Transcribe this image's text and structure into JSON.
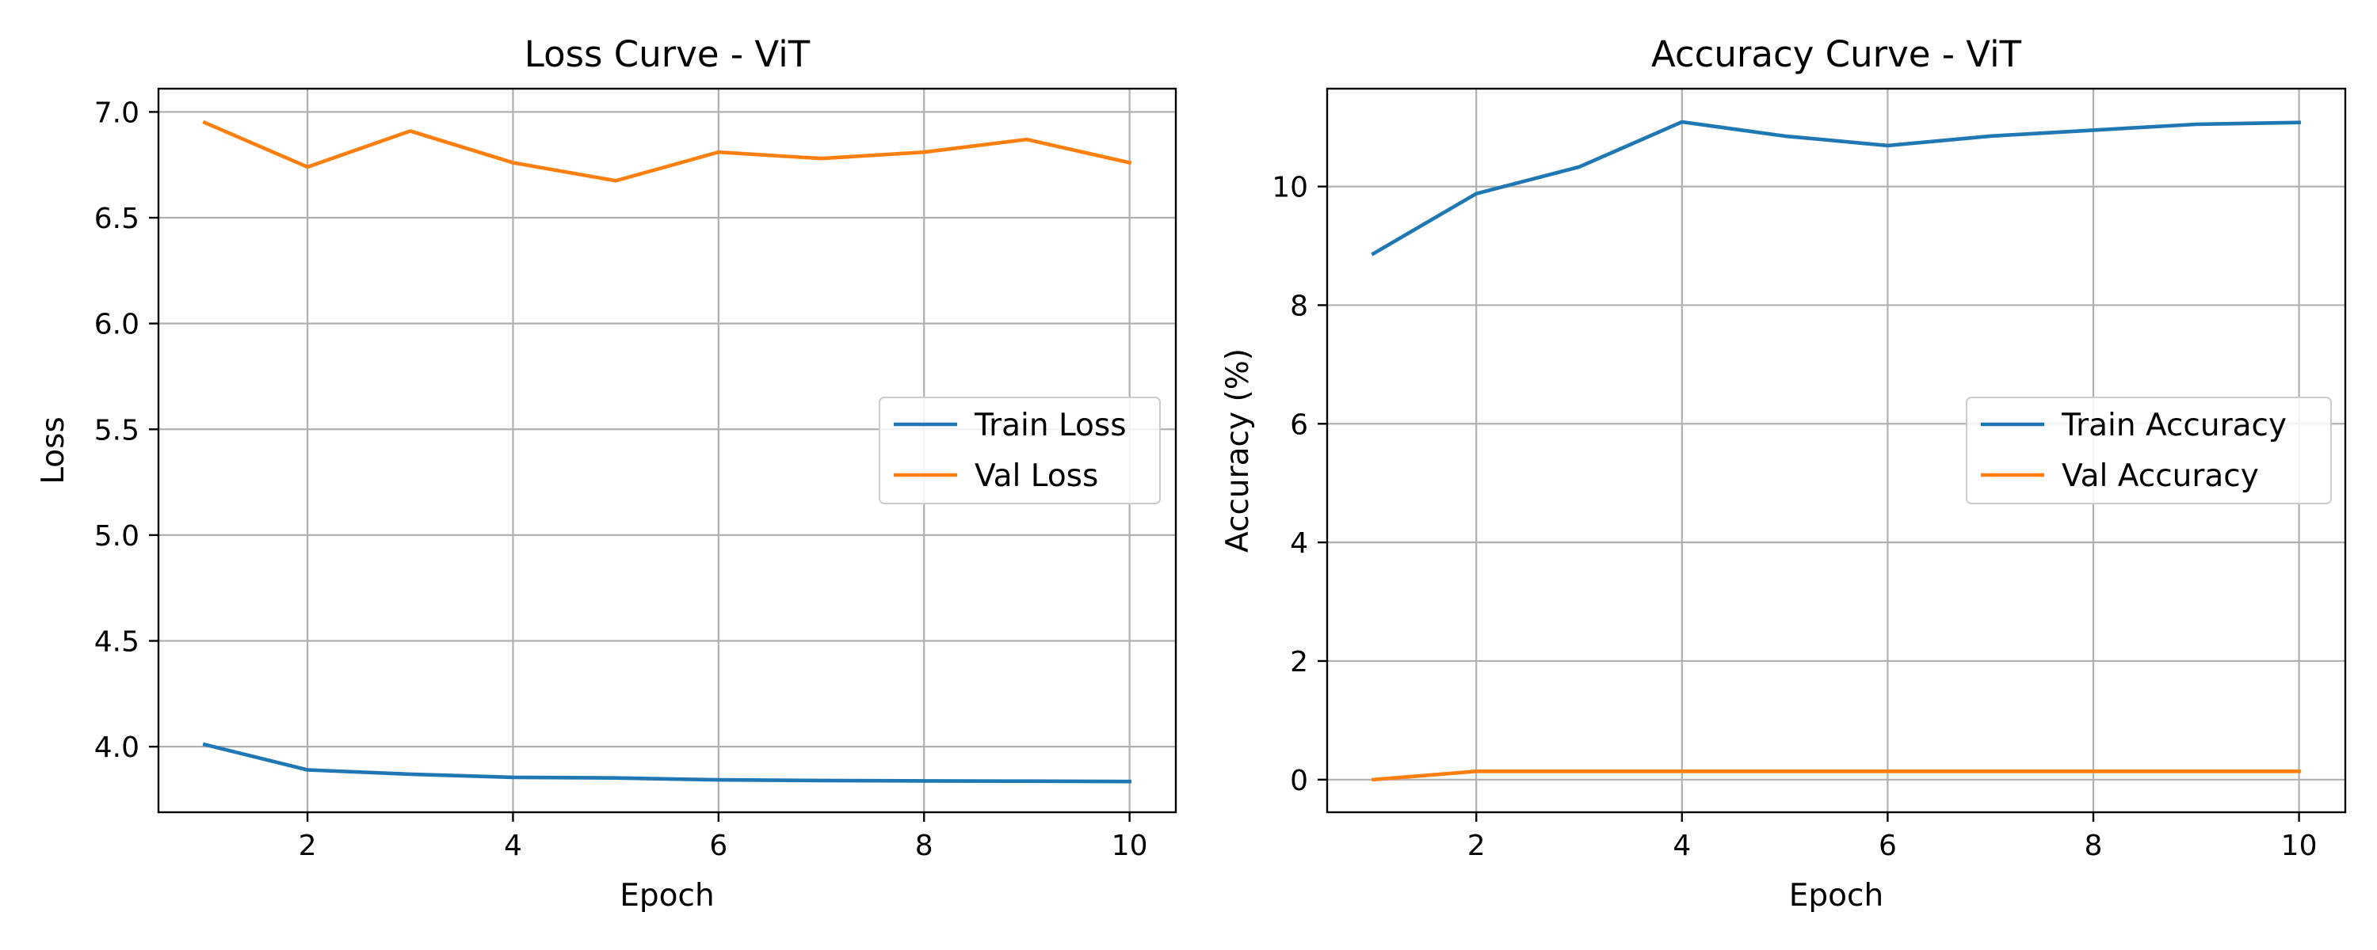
{
  "chart_data": [
    {
      "type": "line",
      "title": "Loss Curve - ViT",
      "xlabel": "Epoch",
      "ylabel": "Loss",
      "xlim": [
        0.55,
        10.45
      ],
      "ylim": [
        3.69,
        7.11
      ],
      "xticks": [
        2,
        4,
        6,
        8,
        10
      ],
      "yticks": [
        4.0,
        4.5,
        5.0,
        5.5,
        6.0,
        6.5,
        7.0
      ],
      "ytick_decimals": 1,
      "grid": true,
      "legend_position": "center-right",
      "x": [
        1,
        2,
        3,
        4,
        5,
        6,
        7,
        8,
        9,
        10
      ],
      "series": [
        {
          "name": "Train Loss",
          "color": "#1f77b4",
          "values": [
            4.01,
            3.89,
            3.87,
            3.855,
            3.852,
            3.843,
            3.84,
            3.838,
            3.837,
            3.835
          ]
        },
        {
          "name": "Val Loss",
          "color": "#ff7f0e",
          "values": [
            6.95,
            6.74,
            6.91,
            6.76,
            6.675,
            6.81,
            6.78,
            6.81,
            6.87,
            6.76
          ]
        }
      ]
    },
    {
      "type": "line",
      "title": "Accuracy Curve - ViT",
      "xlabel": "Epoch",
      "ylabel": "Accuracy (%)",
      "xlim": [
        0.55,
        10.45
      ],
      "ylim": [
        -0.55,
        11.65
      ],
      "xticks": [
        2,
        4,
        6,
        8,
        10
      ],
      "yticks": [
        0,
        2,
        4,
        6,
        8,
        10
      ],
      "ytick_decimals": 0,
      "grid": true,
      "legend_position": "center-right",
      "x": [
        1,
        2,
        3,
        4,
        5,
        6,
        7,
        8,
        9,
        10
      ],
      "series": [
        {
          "name": "Train Accuracy",
          "color": "#1f77b4",
          "values": [
            8.87,
            9.88,
            10.33,
            11.09,
            10.85,
            10.69,
            10.85,
            10.95,
            11.05,
            11.08
          ]
        },
        {
          "name": "Val Accuracy",
          "color": "#ff7f0e",
          "values": [
            0.0,
            0.14,
            0.14,
            0.14,
            0.14,
            0.14,
            0.14,
            0.14,
            0.14,
            0.14
          ]
        }
      ]
    }
  ]
}
